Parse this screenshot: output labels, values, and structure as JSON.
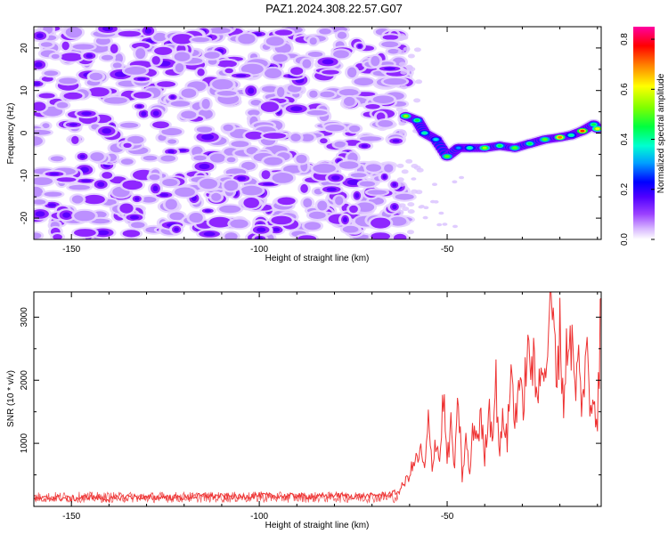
{
  "title": "PAZ1.2024.308.22.57.G07",
  "chart_data": [
    {
      "type": "heatmap",
      "xlabel": "Height of straight line (km)",
      "ylabel": "Frequency (Hz)",
      "xlim": [
        -160,
        -9
      ],
      "ylim": [
        -25,
        25
      ],
      "xticks": [
        -150,
        -100,
        -50
      ],
      "yticks": [
        -20,
        -10,
        0,
        10,
        20
      ],
      "colorbar": {
        "label": "Normalized spectral amplitude",
        "range": [
          0,
          0.85
        ],
        "ticks": [
          "0.0",
          "0.2",
          "0.4",
          "0.6",
          "0.8"
        ],
        "colormap": [
          "#ffffff",
          "#b06cff",
          "#7a00ff",
          "#0000ff",
          "#00c8ff",
          "#00ff80",
          "#80ff00",
          "#ffff00",
          "#ff8000",
          "#ff0000",
          "#ff00a0"
        ]
      },
      "noise_region_x": [
        -160,
        -63
      ],
      "signal_track": [
        {
          "x": -61,
          "y": 4.0,
          "amp": 0.55
        },
        {
          "x": -58,
          "y": 3.0,
          "amp": 0.45
        },
        {
          "x": -56,
          "y": 0.0,
          "amp": 0.4
        },
        {
          "x": -53,
          "y": -1.5,
          "amp": 0.35
        },
        {
          "x": -50,
          "y": -5.5,
          "amp": 0.5
        },
        {
          "x": -47,
          "y": -3.5,
          "amp": 0.3
        },
        {
          "x": -44,
          "y": -3.5,
          "amp": 0.4
        },
        {
          "x": -40,
          "y": -3.5,
          "amp": 0.55
        },
        {
          "x": -36,
          "y": -3.0,
          "amp": 0.45
        },
        {
          "x": -32,
          "y": -3.5,
          "amp": 0.5
        },
        {
          "x": -28,
          "y": -2.5,
          "amp": 0.45
        },
        {
          "x": -24,
          "y": -1.5,
          "amp": 0.5
        },
        {
          "x": -20,
          "y": -1.0,
          "amp": 0.7
        },
        {
          "x": -17,
          "y": -0.5,
          "amp": 0.4
        },
        {
          "x": -14,
          "y": 0.5,
          "amp": 0.75
        },
        {
          "x": -11,
          "y": 2.0,
          "amp": 0.45
        },
        {
          "x": -10,
          "y": 1.0,
          "amp": 0.6
        }
      ]
    },
    {
      "type": "line",
      "xlabel": "Height of straight line (km)",
      "ylabel": "SNR (10 * v/v)",
      "xlim": [
        -160,
        -9
      ],
      "ylim": [
        0,
        3400
      ],
      "xticks": [
        -150,
        -100,
        -50
      ],
      "yticks": [
        1000,
        2000,
        3000
      ],
      "line_color": "#ee3333",
      "series": [
        {
          "x": [
            -160,
            -155,
            -150,
            -145,
            -140,
            -135,
            -130,
            -125,
            -120,
            -115,
            -110,
            -105,
            -100,
            -95,
            -90,
            -85,
            -80,
            -75,
            -70,
            -65,
            -63,
            -61,
            -59,
            -57,
            -56,
            -55,
            -54,
            -53,
            -52,
            -51,
            -50,
            -49,
            -48,
            -47,
            -46,
            -45,
            -44,
            -43,
            -42,
            -41,
            -40,
            -39,
            -38,
            -37,
            -36,
            -35,
            -34,
            -33,
            -32,
            -31,
            -30,
            -29,
            -28,
            -27,
            -26,
            -25,
            -24,
            -23,
            -22,
            -21,
            -20,
            -19,
            -18,
            -17,
            -16,
            -15,
            -14,
            -13,
            -12,
            -11,
            -10,
            -9
          ],
          "y": [
            110,
            140,
            120,
            150,
            110,
            160,
            130,
            150,
            140,
            170,
            160,
            150,
            180,
            160,
            170,
            150,
            180,
            160,
            170,
            200,
            230,
            400,
            650,
            850,
            560,
            1300,
            650,
            1100,
            700,
            1800,
            700,
            1250,
            600,
            1700,
            450,
            1050,
            500,
            1300,
            1100,
            1400,
            750,
            1600,
            1200,
            1950,
            850,
            1450,
            1050,
            2200,
            1350,
            2000,
            1550,
            2200,
            2400,
            2200,
            1600,
            2650,
            1900,
            2950,
            3100,
            2100,
            2750,
            1650,
            2650,
            2700,
            1850,
            2250,
            1550,
            2650,
            1500,
            1850,
            1350,
            3300
          ]
        }
      ]
    }
  ]
}
